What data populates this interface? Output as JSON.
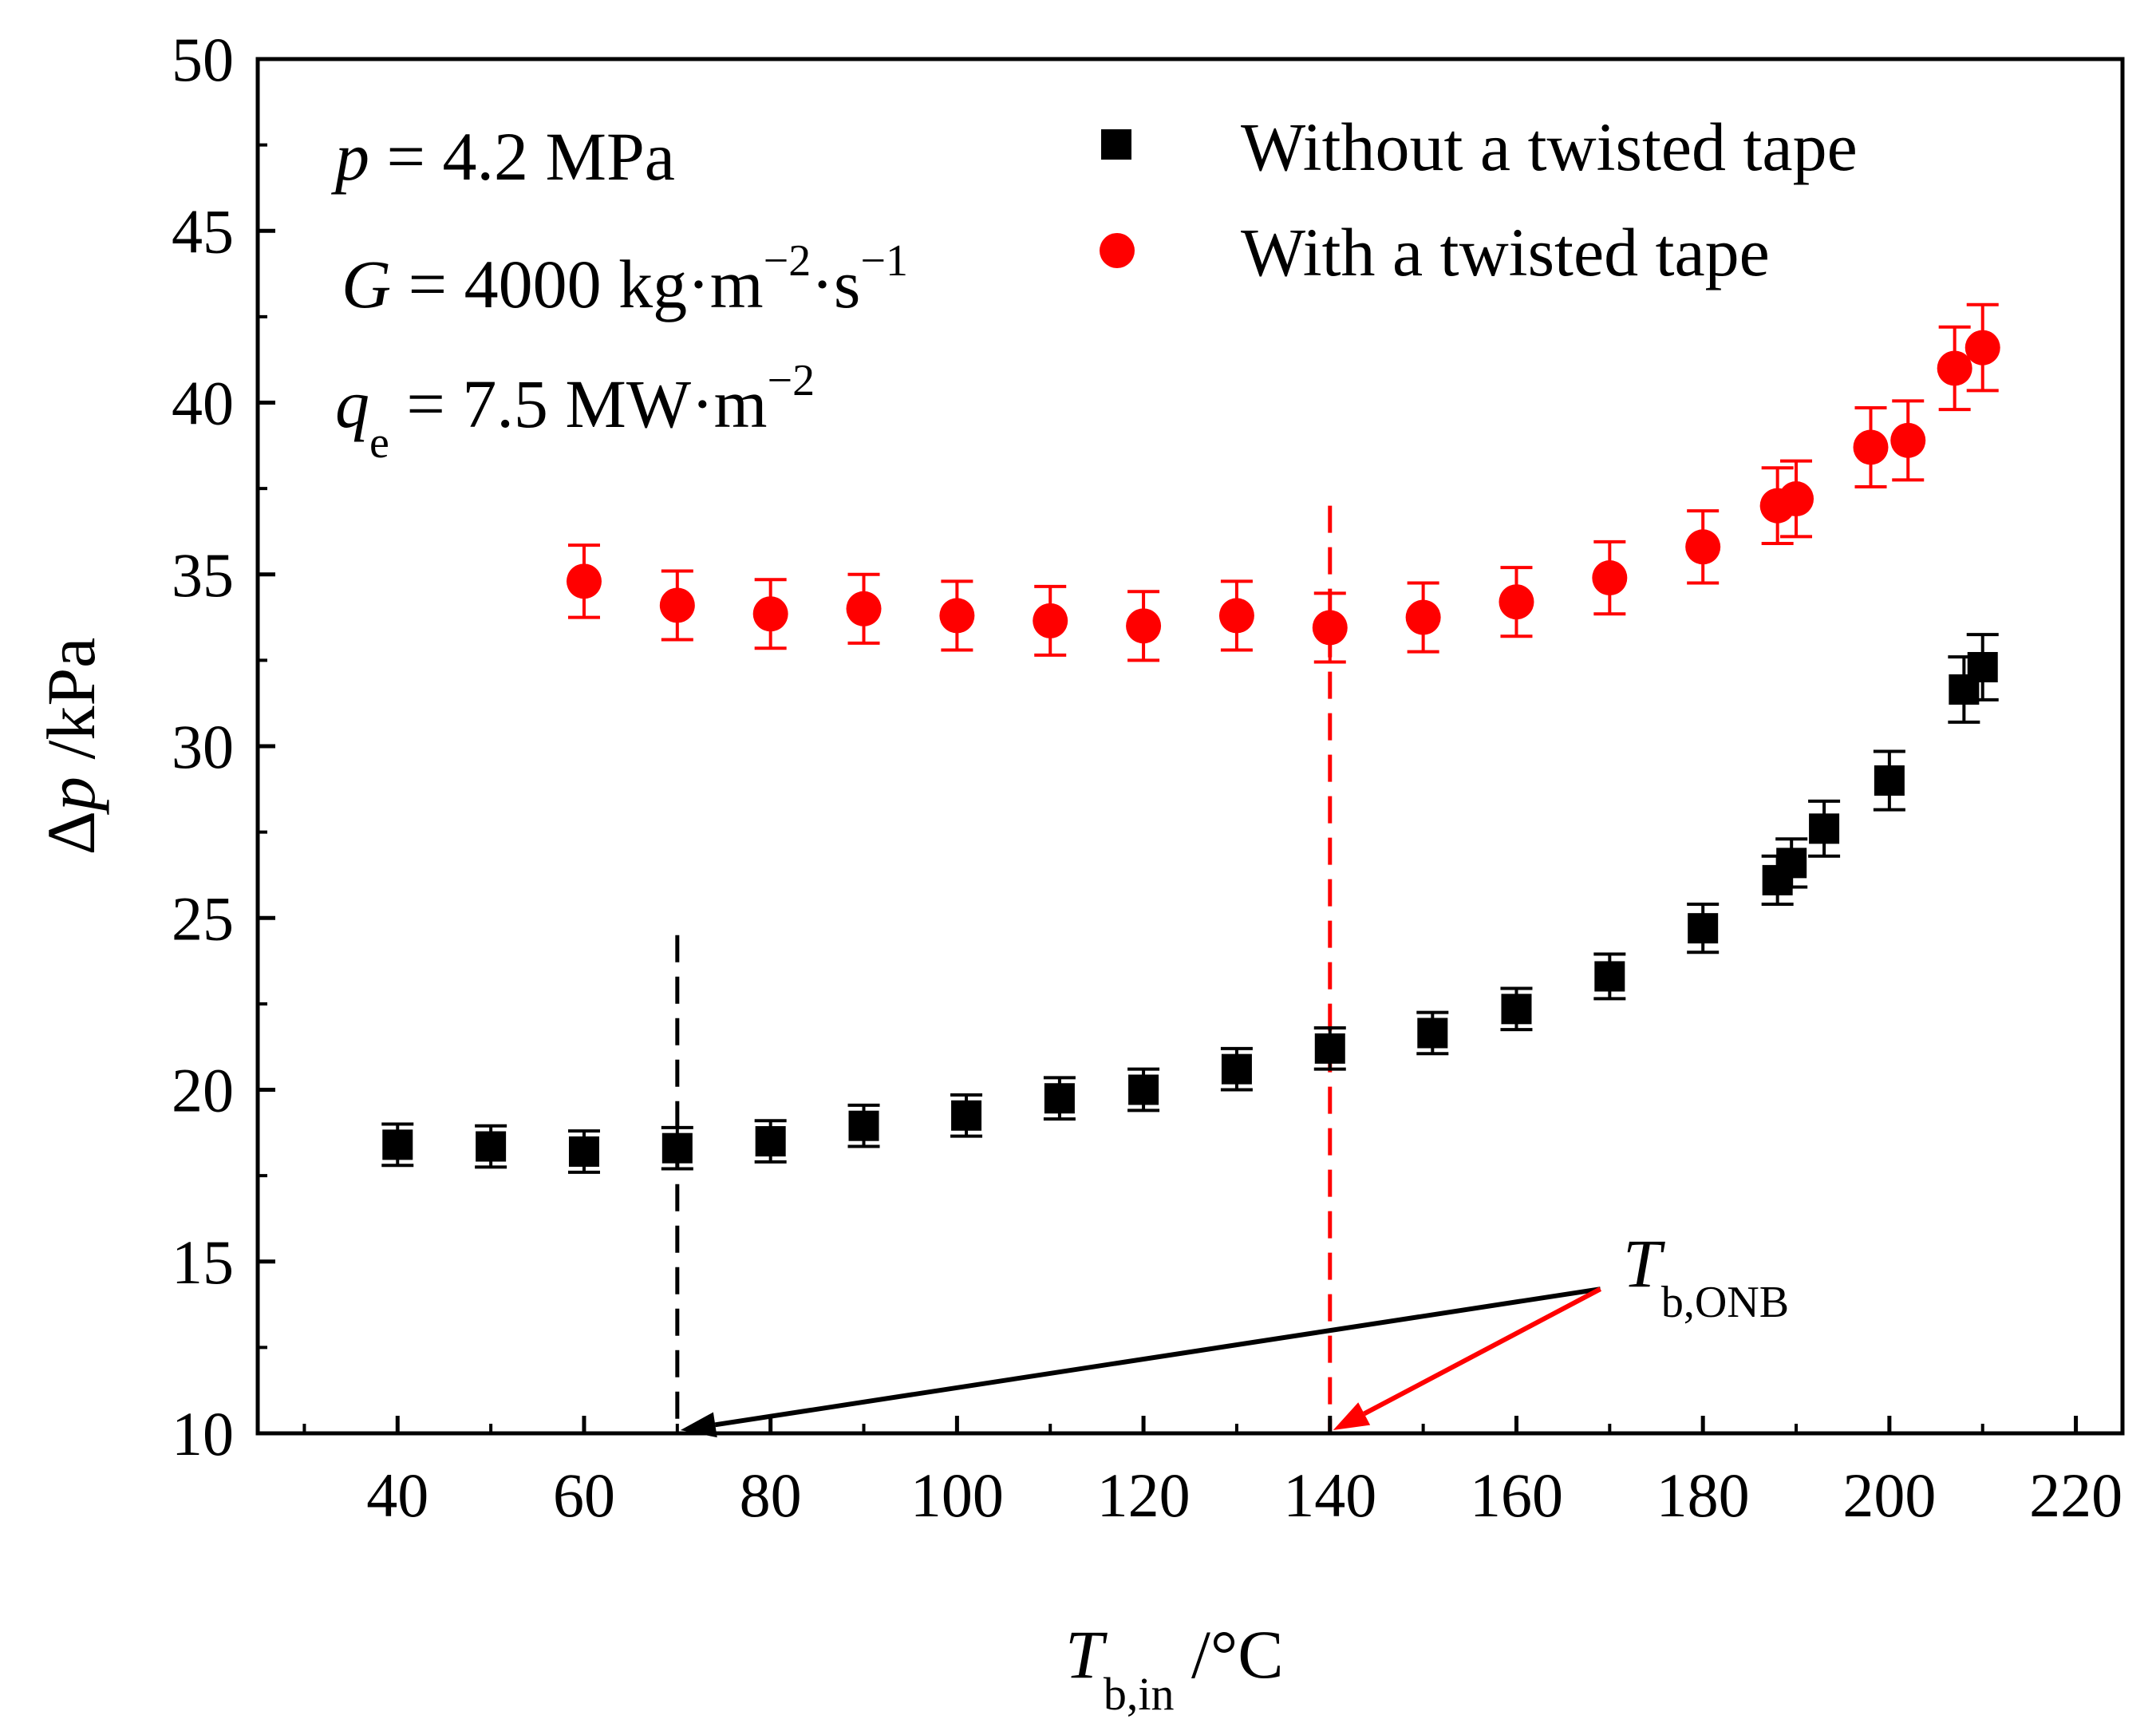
{
  "chart_data": {
    "type": "scatter",
    "x_axis": {
      "label_main": "T",
      "label_sub": "b,in",
      "label_unit": " /°C",
      "range": [
        25,
        225
      ],
      "ticks": [
        40,
        60,
        80,
        100,
        120,
        140,
        160,
        180,
        200,
        220
      ]
    },
    "y_axis": {
      "label_delta": "Δ",
      "label_var": "p",
      "label_unit": " /kPa",
      "range": [
        10,
        50
      ],
      "ticks": [
        10,
        15,
        20,
        25,
        30,
        35,
        40,
        45,
        50
      ]
    },
    "conditions": {
      "p_var": "p",
      "p_value": " = 4.2 MPa",
      "G_var": "G",
      "G_value": " = 4000 kg·m",
      "G_exp1": "−2",
      "G_dot_s": "·s",
      "G_exp2": "−1",
      "q_var": "q",
      "q_sub": "e",
      "q_value": " = 7.5 MW·m",
      "q_exp": "−2"
    },
    "annotation": {
      "label_main": "T",
      "label_sub": "b,ONB",
      "onb_without": 70,
      "onb_with": 140,
      "arrow_source": [
        169,
        14.2
      ],
      "arrow_red_end_x": 140,
      "arrow_black_end_x": 70,
      "black_line_top_y": 24.5,
      "red_line_top_y": 37
    },
    "series": [
      {
        "name": "Without a twisted tape",
        "marker": "square",
        "color": "#000000",
        "points": [
          {
            "x": 40,
            "y": 18.4,
            "err": 0.6
          },
          {
            "x": 50,
            "y": 18.35,
            "err": 0.6
          },
          {
            "x": 60,
            "y": 18.2,
            "err": 0.6
          },
          {
            "x": 70,
            "y": 18.3,
            "err": 0.6
          },
          {
            "x": 80,
            "y": 18.5,
            "err": 0.6
          },
          {
            "x": 90,
            "y": 18.95,
            "err": 0.6
          },
          {
            "x": 101,
            "y": 19.25,
            "err": 0.6
          },
          {
            "x": 111,
            "y": 19.75,
            "err": 0.6
          },
          {
            "x": 120,
            "y": 20.0,
            "err": 0.6
          },
          {
            "x": 130,
            "y": 20.6,
            "err": 0.6
          },
          {
            "x": 140,
            "y": 21.2,
            "err": 0.6
          },
          {
            "x": 151,
            "y": 21.65,
            "err": 0.6
          },
          {
            "x": 160,
            "y": 22.35,
            "err": 0.6
          },
          {
            "x": 170,
            "y": 23.3,
            "err": 0.65
          },
          {
            "x": 180,
            "y": 24.7,
            "err": 0.7
          },
          {
            "x": 188,
            "y": 26.1,
            "err": 0.7
          },
          {
            "x": 189.5,
            "y": 26.6,
            "err": 0.7
          },
          {
            "x": 193,
            "y": 27.6,
            "err": 0.8
          },
          {
            "x": 200,
            "y": 29.0,
            "err": 0.85
          },
          {
            "x": 208,
            "y": 31.65,
            "err": 0.95
          },
          {
            "x": 210,
            "y": 32.3,
            "err": 0.95
          }
        ]
      },
      {
        "name": "With a twisted tape",
        "marker": "circle",
        "color": "#ff0000",
        "points": [
          {
            "x": 60,
            "y": 34.8,
            "err": 1.05
          },
          {
            "x": 70,
            "y": 34.1,
            "err": 1.0
          },
          {
            "x": 80,
            "y": 33.85,
            "err": 1.0
          },
          {
            "x": 90,
            "y": 34.0,
            "err": 1.0
          },
          {
            "x": 100,
            "y": 33.8,
            "err": 1.0
          },
          {
            "x": 110,
            "y": 33.65,
            "err": 1.0
          },
          {
            "x": 120,
            "y": 33.5,
            "err": 1.0
          },
          {
            "x": 130,
            "y": 33.8,
            "err": 1.0
          },
          {
            "x": 140,
            "y": 33.45,
            "err": 1.0
          },
          {
            "x": 150,
            "y": 33.75,
            "err": 1.0
          },
          {
            "x": 160,
            "y": 34.2,
            "err": 1.0
          },
          {
            "x": 170,
            "y": 34.9,
            "err": 1.05
          },
          {
            "x": 180,
            "y": 35.8,
            "err": 1.05
          },
          {
            "x": 188,
            "y": 37.0,
            "err": 1.1
          },
          {
            "x": 190,
            "y": 37.2,
            "err": 1.1
          },
          {
            "x": 198,
            "y": 38.7,
            "err": 1.15
          },
          {
            "x": 202,
            "y": 38.9,
            "err": 1.15
          },
          {
            "x": 207,
            "y": 41.0,
            "err": 1.2
          },
          {
            "x": 210,
            "y": 41.6,
            "err": 1.25
          }
        ]
      }
    ]
  }
}
